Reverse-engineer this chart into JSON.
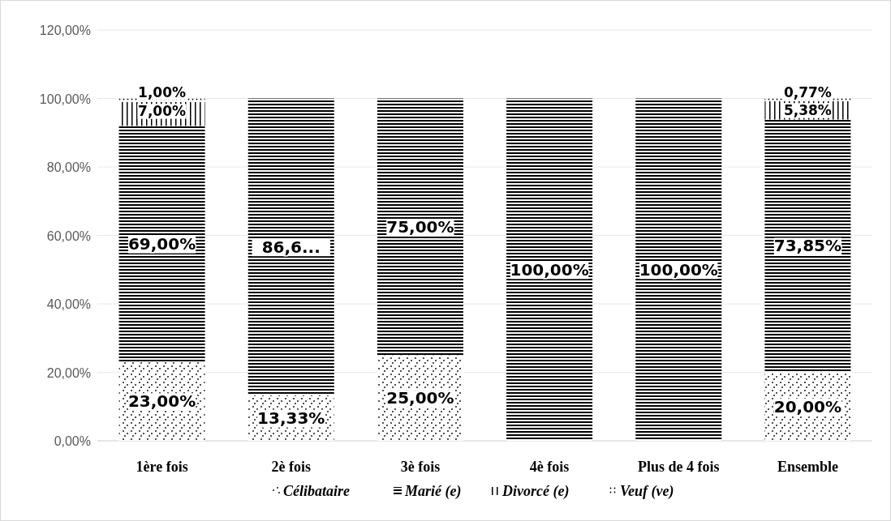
{
  "chart_data": {
    "type": "bar",
    "stacked": true,
    "categories": [
      "1ère fois",
      "2è fois",
      "3è fois",
      "4è fois",
      "Plus de 4 fois",
      "Ensemble"
    ],
    "series": [
      {
        "name": "Célibataire",
        "color": "#000000",
        "values": [
          23,
          13.33,
          25,
          0,
          0,
          20
        ],
        "value_labels": [
          "23,00%",
          "13,33%",
          "25,00%",
          null,
          null,
          "20,00%"
        ]
      },
      {
        "name": "Marié (e)",
        "color": "#000000",
        "values": [
          69,
          86.67,
          75,
          100,
          100,
          73.85
        ],
        "value_labels": [
          "69,00%",
          "86,6...",
          "75,00%",
          "100,00%",
          "100,00%",
          "73,85%"
        ]
      },
      {
        "name": "Divorcé (e)",
        "color": "#000000",
        "values": [
          7,
          0,
          0,
          0,
          0,
          5.38
        ],
        "value_labels": [
          "7,00%",
          null,
          null,
          null,
          null,
          "5,38%"
        ]
      },
      {
        "name": "Veuf (ve)",
        "color": "#000000",
        "values": [
          1,
          0,
          0,
          0,
          0,
          0.77
        ],
        "value_labels": [
          "1,00%",
          null,
          null,
          null,
          null,
          "0,77%"
        ]
      }
    ],
    "ylim": [
      0,
      120
    ],
    "yticks": [
      {
        "value": 0,
        "label": "0,00%"
      },
      {
        "value": 20,
        "label": "20,00%"
      },
      {
        "value": 40,
        "label": "40,00%"
      },
      {
        "value": 60,
        "label": "60,00%"
      },
      {
        "value": 80,
        "label": "80,00%"
      },
      {
        "value": 100,
        "label": "100,00%"
      },
      {
        "value": 120,
        "label": "120,00%"
      }
    ],
    "grid": "y",
    "legend": "bottom"
  }
}
